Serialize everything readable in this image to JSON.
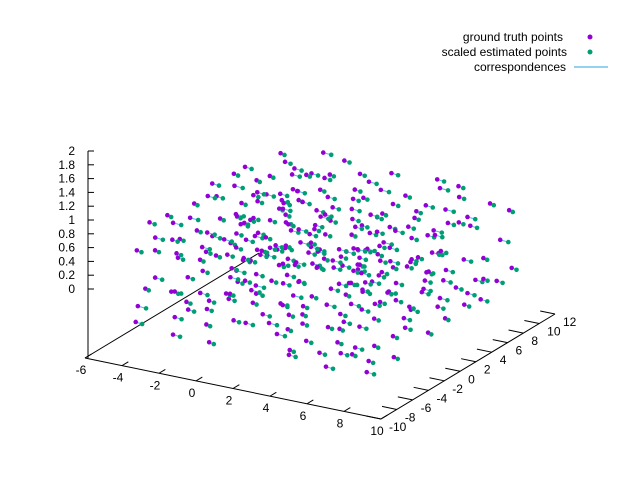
{
  "chart_data": {
    "type": "scatter",
    "title": "",
    "xlabel": "",
    "ylabel": "",
    "zlabel": "",
    "xlim": [
      -6,
      10
    ],
    "ylim": [
      -10,
      12
    ],
    "zlim": [
      0,
      2
    ],
    "xticks": [
      "-6",
      "-4",
      "-2",
      "0",
      "2",
      "4",
      "6",
      "8",
      "10"
    ],
    "yticks": [
      "-10",
      "-8",
      "-6",
      "-4",
      "-2",
      "0",
      "2",
      "4",
      "6",
      "8",
      "10",
      "12"
    ],
    "zticks": [
      "0",
      "0.2",
      "0.4",
      "0.6",
      "0.8",
      "1",
      "1.2",
      "1.4",
      "1.6",
      "1.8",
      "2"
    ],
    "legend_position": "top-right",
    "grid": false,
    "series": [
      {
        "name": "ground truth points",
        "color": "#9400d3",
        "marker": "circle"
      },
      {
        "name": "scaled estimated points",
        "color": "#009e73",
        "marker": "circle"
      },
      {
        "name": "correspondences",
        "color": "#56b4e9",
        "marker": "line"
      }
    ],
    "point_cloud": {
      "description_note": "",
      "x_range": [
        -4,
        8
      ],
      "y_range": [
        -8,
        10
      ],
      "z_range": [
        0.4,
        1.8
      ],
      "grid_x": [
        -4,
        -2,
        0,
        2,
        4,
        6,
        8
      ],
      "grid_y": [
        -8,
        -6,
        -4,
        -2,
        0,
        2,
        4,
        6,
        8,
        10
      ],
      "grid_z": [
        0.4,
        0.7,
        1.0,
        1.3,
        1.6,
        1.8
      ],
      "count": 420
    }
  }
}
